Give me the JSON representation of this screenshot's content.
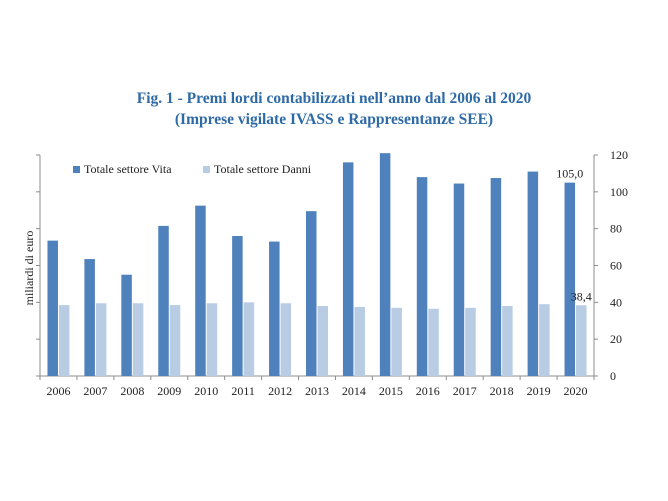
{
  "chart_data": {
    "type": "bar",
    "title": "Fig. 1 - Premi lordi contabilizzati nell’anno dal 2006 al 2020",
    "subtitle": "(Imprese vigilate IVASS e Rappresentanze SEE)",
    "ylabel": "miliardi di euro",
    "ylim": [
      0,
      120
    ],
    "yticks": [
      0,
      20,
      40,
      60,
      80,
      100,
      120
    ],
    "categories": [
      "2006",
      "2007",
      "2008",
      "2009",
      "2010",
      "2011",
      "2012",
      "2013",
      "2014",
      "2015",
      "2016",
      "2017",
      "2018",
      "2019",
      "2020"
    ],
    "series": [
      {
        "name": "Totale settore Vita",
        "color": "#4f81bd",
        "values": [
          73.5,
          63.5,
          55.0,
          81.5,
          92.5,
          76.0,
          73.0,
          89.5,
          116.0,
          121.0,
          108.0,
          104.5,
          107.5,
          111.0,
          105.0
        ]
      },
      {
        "name": "Totale settore Danni",
        "color": "#b8cce4",
        "values": [
          38.5,
          39.5,
          39.5,
          38.5,
          39.5,
          40.0,
          39.5,
          38.0,
          37.5,
          37.0,
          36.5,
          37.0,
          38.0,
          39.0,
          38.4
        ]
      }
    ],
    "annotations": [
      {
        "series": "Totale settore Vita",
        "category": "2020",
        "text": "105,0"
      },
      {
        "series": "Totale settore Danni",
        "category": "2020",
        "text": "38,4"
      }
    ],
    "legend": "top-left",
    "grid": false
  }
}
